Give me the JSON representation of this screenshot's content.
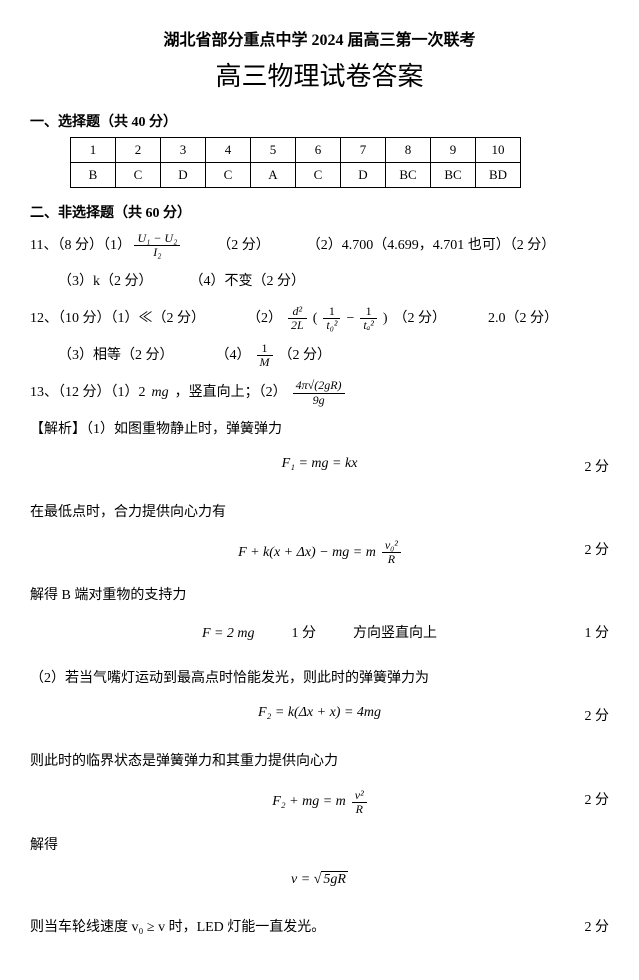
{
  "header": {
    "line1": "湖北省部分重点中学 2024 届高三第一次联考",
    "line2": "高三物理试卷答案"
  },
  "section1": {
    "title": "一、选择题（共 40 分）",
    "numbers": [
      "1",
      "2",
      "3",
      "4",
      "5",
      "6",
      "7",
      "8",
      "9",
      "10"
    ],
    "answers": [
      "B",
      "C",
      "D",
      "C",
      "A",
      "C",
      "D",
      "BC",
      "BC",
      "BD"
    ]
  },
  "section2": {
    "title": "二、非选择题（共 60 分）"
  },
  "q11": {
    "prefix": "11、（8 分）（1）",
    "frac_num": "U₁ − U₂",
    "frac_den": "I₂",
    "p1_score": "（2 分）",
    "p2": "（2）4.700（4.699，4.701 也可）（2 分）",
    "p3": "（3）k（2 分）",
    "p4": "（4）不变（2 分）"
  },
  "q12": {
    "prefix": "12、（10 分）（1）≪（2 分）",
    "p2_label": "（2）",
    "frac1_num": "d²",
    "frac1_den": "2L",
    "paren_l": "(",
    "frac2_num": "1",
    "frac2_den": "t₀²",
    "minus": " − ",
    "frac3_num": "1",
    "frac3_den": "tₐ²",
    "paren_r": ")",
    "p2_score": "（2 分）",
    "p2_val": "2.0（2 分）",
    "p3": "（3）相等（2 分）",
    "p4_label": "（4）",
    "frac4_num": "1",
    "frac4_den": "M",
    "p4_score": "（2 分）"
  },
  "q13": {
    "prefix_a": "13、（12 分）（1）2 ",
    "mg": "mg",
    "prefix_b": "，竖直向上；（2）",
    "frac_num": "4π√(2gR)",
    "frac_den": "9g"
  },
  "analysis": {
    "head": "【解析】（1）如图重物静止时，弹簧弹力",
    "eq1": "F₁ = mg = kx",
    "eq1_score": "2 分",
    "t2": "在最低点时，合力提供向心力有",
    "eq2_left": "F + k(x + Δx) − mg = m",
    "eq2_frac_num": "v₀²",
    "eq2_frac_den": "R",
    "eq2_score": "2 分",
    "t3": "解得 B 端对重物的支持力",
    "eq3_a": "F = 2 mg",
    "eq3_mid": "1 分",
    "eq3_b": "方向竖直向上",
    "eq3_score": "1 分",
    "t4": "（2）若当气嘴灯运动到最高点时恰能发光，则此时的弹簧弹力为",
    "eq4": "F₂ = k(Δx + x) = 4mg",
    "eq4_score": "2 分",
    "t5": "则此时的临界状态是弹簧弹力和其重力提供向心力",
    "eq5_left": "F₂ + mg = m",
    "eq5_frac_num": "v²",
    "eq5_frac_den": "R",
    "eq5_score": "2 分",
    "t6": "解得",
    "eq6_a": "v = ",
    "eq6_b": "5gR",
    "t7": "则当车轮线速度 v₀ ≥ v 时，LED 灯能一直发光。",
    "t7_score": "2 分"
  }
}
